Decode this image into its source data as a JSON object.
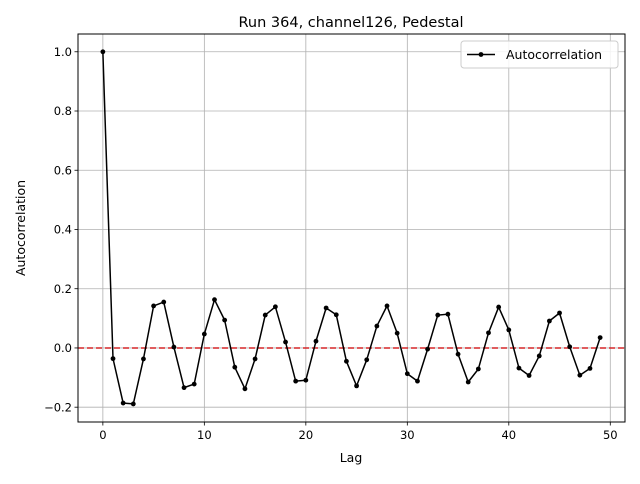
{
  "chart_data": {
    "type": "line",
    "title": "Run 364, channel126, Pedestal",
    "xlabel": "Lag",
    "ylabel": "Autocorrelation",
    "xlim": [
      -2.45,
      51.45
    ],
    "ylim": [
      -0.25,
      1.06
    ],
    "xticks": [
      0,
      10,
      20,
      30,
      40,
      50
    ],
    "xtick_labels": [
      "0",
      "10",
      "20",
      "30",
      "40",
      "50"
    ],
    "yticks": [
      -0.2,
      0.0,
      0.2,
      0.4,
      0.6,
      0.8,
      1.0
    ],
    "ytick_labels": [
      "−0.2",
      "0.0",
      "0.2",
      "0.4",
      "0.6",
      "0.8",
      "1.0"
    ],
    "grid": true,
    "legend_position": "top-right",
    "reference_line": {
      "y": 0,
      "style": "dashed",
      "color": "#d62728"
    },
    "series": [
      {
        "name": "Autocorrelation",
        "color": "#000000",
        "marker": "dot",
        "x": [
          0,
          1,
          2,
          3,
          4,
          5,
          6,
          7,
          8,
          9,
          10,
          11,
          12,
          13,
          14,
          15,
          16,
          17,
          18,
          19,
          20,
          21,
          22,
          23,
          24,
          25,
          26,
          27,
          28,
          29,
          30,
          31,
          32,
          33,
          34,
          35,
          36,
          37,
          38,
          39,
          40,
          41,
          42,
          43,
          44,
          45,
          46,
          47,
          48,
          49
        ],
        "y": [
          1.0,
          -0.036,
          -0.186,
          -0.189,
          -0.037,
          0.142,
          0.155,
          0.003,
          -0.134,
          -0.122,
          0.047,
          0.163,
          0.094,
          -0.065,
          -0.138,
          -0.037,
          0.111,
          0.139,
          0.02,
          -0.112,
          -0.109,
          0.023,
          0.135,
          0.112,
          -0.045,
          -0.128,
          -0.04,
          0.074,
          0.142,
          0.05,
          -0.087,
          -0.112,
          -0.004,
          0.111,
          0.114,
          -0.021,
          -0.115,
          -0.071,
          0.051,
          0.138,
          0.061,
          -0.068,
          -0.093,
          -0.027,
          0.091,
          0.118,
          0.004,
          -0.092,
          -0.069,
          0.035
        ]
      }
    ]
  }
}
